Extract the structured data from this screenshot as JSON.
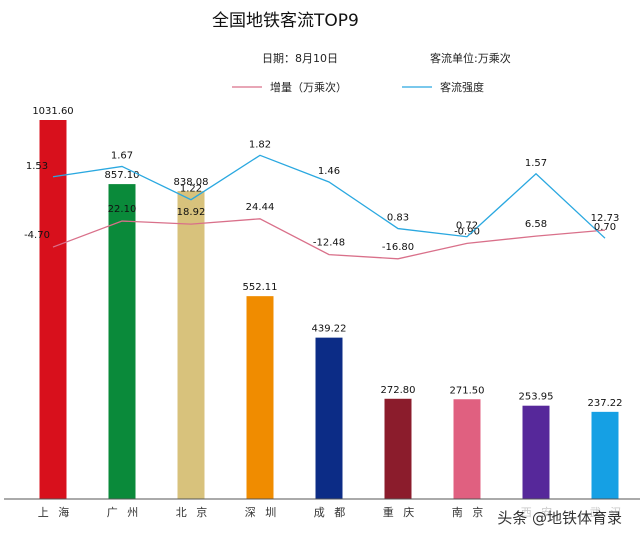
{
  "chart_data": {
    "type": "bar",
    "title": "全国地铁客流TOP9",
    "date_text": "日期：8月10日",
    "unit_text": "客流单位:万乘次",
    "legend": [
      "增量（万乘次）",
      "客流强度"
    ],
    "categories": [
      "上海",
      "广州",
      "北京",
      "深圳",
      "成都",
      "重庆",
      "南京",
      "西安",
      "武汉"
    ],
    "category_labels": [
      "上 海",
      "广 州",
      "北 京",
      "深 圳",
      "成 都",
      "重 庆",
      "南 京",
      "西 安",
      "武 汉"
    ],
    "bar_series": {
      "values": [
        1031.6,
        857.1,
        838.08,
        552.11,
        439.22,
        272.8,
        271.5,
        253.95,
        237.22
      ],
      "labels": [
        "1031.60",
        "857.10",
        "838.08",
        "552.11",
        "439.22",
        "272.80",
        "271.50",
        "253.95",
        "237.22"
      ],
      "colors": [
        "#d8101c",
        "#0a8a3a",
        "#d8c27c",
        "#f08c00",
        "#0c2c86",
        "#8b1c2c",
        "#e06080",
        "#56289a",
        "#15a0e4"
      ]
    },
    "line_series": [
      {
        "name": "增量（万乘次）",
        "color": "#d9708a",
        "values": [
          -4.7,
          22.1,
          18.92,
          24.44,
          -12.48,
          -16.8,
          -0.9,
          6.58,
          12.73
        ],
        "labels": [
          "-4.70",
          "22.10",
          "18.92",
          "24.44",
          "-12.48",
          "-16.80",
          "-0.90",
          "6.58",
          "12.73"
        ]
      },
      {
        "name": "客流强度",
        "color": "#2aa8e0",
        "values": [
          1.53,
          1.67,
          1.22,
          1.82,
          1.46,
          0.83,
          0.72,
          1.57,
          0.7
        ],
        "labels": [
          "1.53",
          "1.67",
          "1.22",
          "1.82",
          "1.46",
          "0.83",
          "0.72",
          "1.57",
          "0.70"
        ]
      }
    ]
  },
  "watermark": "头条 @地铁体育录"
}
